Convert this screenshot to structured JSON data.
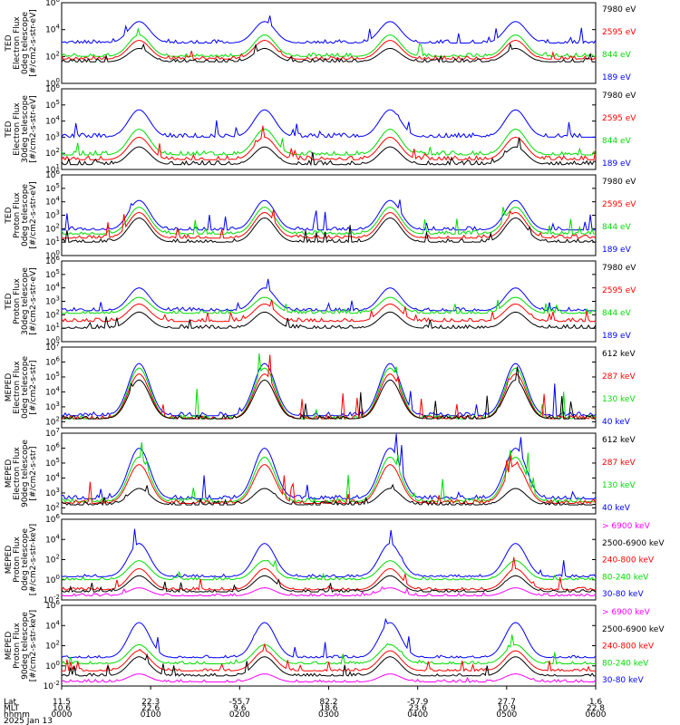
{
  "colors": {
    "blue": "#0000ff",
    "red": "#ff0000",
    "green": "#00dd00",
    "black": "#000000",
    "magenta": "#ff00ff"
  },
  "footer": {
    "row_labels": [
      "Lat",
      "MLT",
      "hhmm",
      "2025 Jan 13"
    ],
    "lat": [
      "11.5",
      "22.3",
      "-55.7",
      "82.2",
      "-57.9",
      "27.7",
      "1.6"
    ],
    "mlt": [
      "10.6",
      "22.6",
      "9.6",
      "18.6",
      "23.6",
      "10.9",
      "22.8"
    ],
    "hhmm": [
      "0000",
      "0100",
      "0200",
      "0300",
      "0400",
      "0500",
      "0600"
    ]
  },
  "chart_data": [
    {
      "type": "line",
      "ylabel": [
        "TED",
        "Electron Flux",
        "0deg telescope",
        "[#/cm2-s-str-eV]"
      ],
      "ticks": [
        "10^6",
        "10^4",
        "10^2",
        "10^0"
      ],
      "ylim_log10": [
        0,
        6
      ],
      "series": [
        {
          "name": "7980 eV",
          "color": "black",
          "base": 1.6,
          "peak": 2.6
        },
        {
          "name": "2595 eV",
          "color": "red",
          "base": 1.8,
          "peak": 3.2
        },
        {
          "name": "844 eV",
          "color": "green",
          "base": 2.0,
          "peak": 3.6
        },
        {
          "name": "189 eV",
          "color": "blue",
          "base": 3.0,
          "peak": 4.6
        }
      ]
    },
    {
      "type": "line",
      "ylabel": [
        "TED",
        "Electron Flux",
        "30deg telescope",
        "[#/cm2-s-str-eV]"
      ],
      "ticks": [
        "10^6",
        "10^5",
        "10^4",
        "10^3",
        "10^2",
        "10^1"
      ],
      "ylim_log10": [
        1,
        6
      ],
      "series": [
        {
          "name": "7980 eV",
          "color": "black",
          "base": 1.3,
          "peak": 2.4
        },
        {
          "name": "2595 eV",
          "color": "red",
          "base": 1.6,
          "peak": 3.0
        },
        {
          "name": "844 eV",
          "color": "green",
          "base": 1.9,
          "peak": 3.5
        },
        {
          "name": "189 eV",
          "color": "blue",
          "base": 3.0,
          "peak": 4.7
        }
      ]
    },
    {
      "type": "line",
      "ylabel": [
        "TED",
        "Proton Flux",
        "0deg telescope",
        "[#/cm2-s-str-eV]"
      ],
      "ticks": [
        "10^6",
        "10^5",
        "10^4",
        "10^3",
        "10^2",
        "10^1",
        "10^0"
      ],
      "ylim_log10": [
        0,
        6
      ],
      "series": [
        {
          "name": "7980 eV",
          "color": "black",
          "base": 1.0,
          "peak": 2.8
        },
        {
          "name": "2595 eV",
          "color": "red",
          "base": 1.3,
          "peak": 3.2
        },
        {
          "name": "844 eV",
          "color": "green",
          "base": 1.6,
          "peak": 3.6
        },
        {
          "name": "189 eV",
          "color": "blue",
          "base": 1.9,
          "peak": 4.1
        }
      ]
    },
    {
      "type": "line",
      "ylabel": [
        "TED",
        "Proton Flux",
        "30deg telescope",
        "[#/cm2-s-str-eV]"
      ],
      "ticks": [
        "10^6",
        "10^5",
        "10^4",
        "10^3",
        "10^2",
        "10^1",
        "10^0"
      ],
      "ylim_log10": [
        0,
        6
      ],
      "series": [
        {
          "name": "7980 eV",
          "color": "black",
          "base": 1.0,
          "peak": 2.2
        },
        {
          "name": "2595 eV",
          "color": "red",
          "base": 1.5,
          "peak": 2.8
        },
        {
          "name": "844 eV",
          "color": "green",
          "base": 2.1,
          "peak": 3.3
        },
        {
          "name": "189 eV",
          "color": "blue",
          "base": 2.3,
          "peak": 4.0
        }
      ]
    },
    {
      "type": "line",
      "ylabel": [
        "MEPED",
        "Electron Flux",
        "0deg telescope",
        "[#/cm2-s-str]"
      ],
      "ticks": [
        "10^7",
        "10^6",
        "10^5",
        "10^4",
        "10^3",
        "10^2"
      ],
      "ylim_log10": [
        1.6,
        7
      ],
      "series": [
        {
          "name": "612 keV",
          "color": "black",
          "base": 2.2,
          "peak": 4.8
        },
        {
          "name": "287 keV",
          "color": "red",
          "base": 2.2,
          "peak": 5.2
        },
        {
          "name": "130 keV",
          "color": "green",
          "base": 2.2,
          "peak": 5.6
        },
        {
          "name": "40 keV",
          "color": "blue",
          "base": 2.4,
          "peak": 5.9
        }
      ]
    },
    {
      "type": "line",
      "ylabel": [
        "MEPED",
        "Electron Flux",
        "90deg telescope",
        "[#/cm2-s-str]"
      ],
      "ticks": [
        "10^7",
        "10^6",
        "10^5",
        "10^4",
        "10^3",
        "10^2"
      ],
      "ylim_log10": [
        1.6,
        7
      ],
      "series": [
        {
          "name": "612 keV",
          "color": "black",
          "base": 2.2,
          "peak": 3.3
        },
        {
          "name": "287 keV",
          "color": "red",
          "base": 2.3,
          "peak": 4.9
        },
        {
          "name": "130 keV",
          "color": "green",
          "base": 2.4,
          "peak": 5.4
        },
        {
          "name": "40 keV",
          "color": "blue",
          "base": 2.6,
          "peak": 6.0
        }
      ]
    },
    {
      "type": "line",
      "ylabel": [
        "MEPED",
        "Proton Flux",
        "0deg telescope",
        "[#/cm2-s-str-keV]"
      ],
      "ticks": [
        "10^6",
        "10^4",
        "10^2",
        "10^0",
        "10^-2"
      ],
      "ylim_log10": [
        -2,
        6
      ],
      "series": [
        {
          "name": "> 6900 keV",
          "color": "magenta",
          "base": -1.6,
          "peak": -0.8
        },
        {
          "name": "2500-6900 keV",
          "color": "black",
          "base": -1.2,
          "peak": 0.4
        },
        {
          "name": "240-800 keV",
          "color": "red",
          "base": -1.0,
          "peak": 1.1
        },
        {
          "name": "80-240 keV",
          "color": "green",
          "base": 0.0,
          "peak": 1.9
        },
        {
          "name": "30-80 keV",
          "color": "blue",
          "base": 0.3,
          "peak": 3.6
        }
      ]
    },
    {
      "type": "line",
      "ylabel": [
        "MEPED",
        "Proton Flux",
        "90deg telescope",
        "[#/cm2-s-str-keV]"
      ],
      "ticks": [
        "10^6",
        "10^4",
        "10^2",
        "10^0",
        "10^-2"
      ],
      "ylim_log10": [
        -2,
        6
      ],
      "series": [
        {
          "name": "> 6900 keV",
          "color": "magenta",
          "base": -1.6,
          "peak": -0.8
        },
        {
          "name": "2500-6900 keV",
          "color": "black",
          "base": -1.0,
          "peak": 0.9
        },
        {
          "name": "240-800 keV",
          "color": "red",
          "base": -0.5,
          "peak": 1.5
        },
        {
          "name": "80-240 keV",
          "color": "green",
          "base": 0.2,
          "peak": 2.1
        },
        {
          "name": "30-80 keV",
          "color": "blue",
          "base": 0.8,
          "peak": 4.3
        }
      ]
    }
  ]
}
